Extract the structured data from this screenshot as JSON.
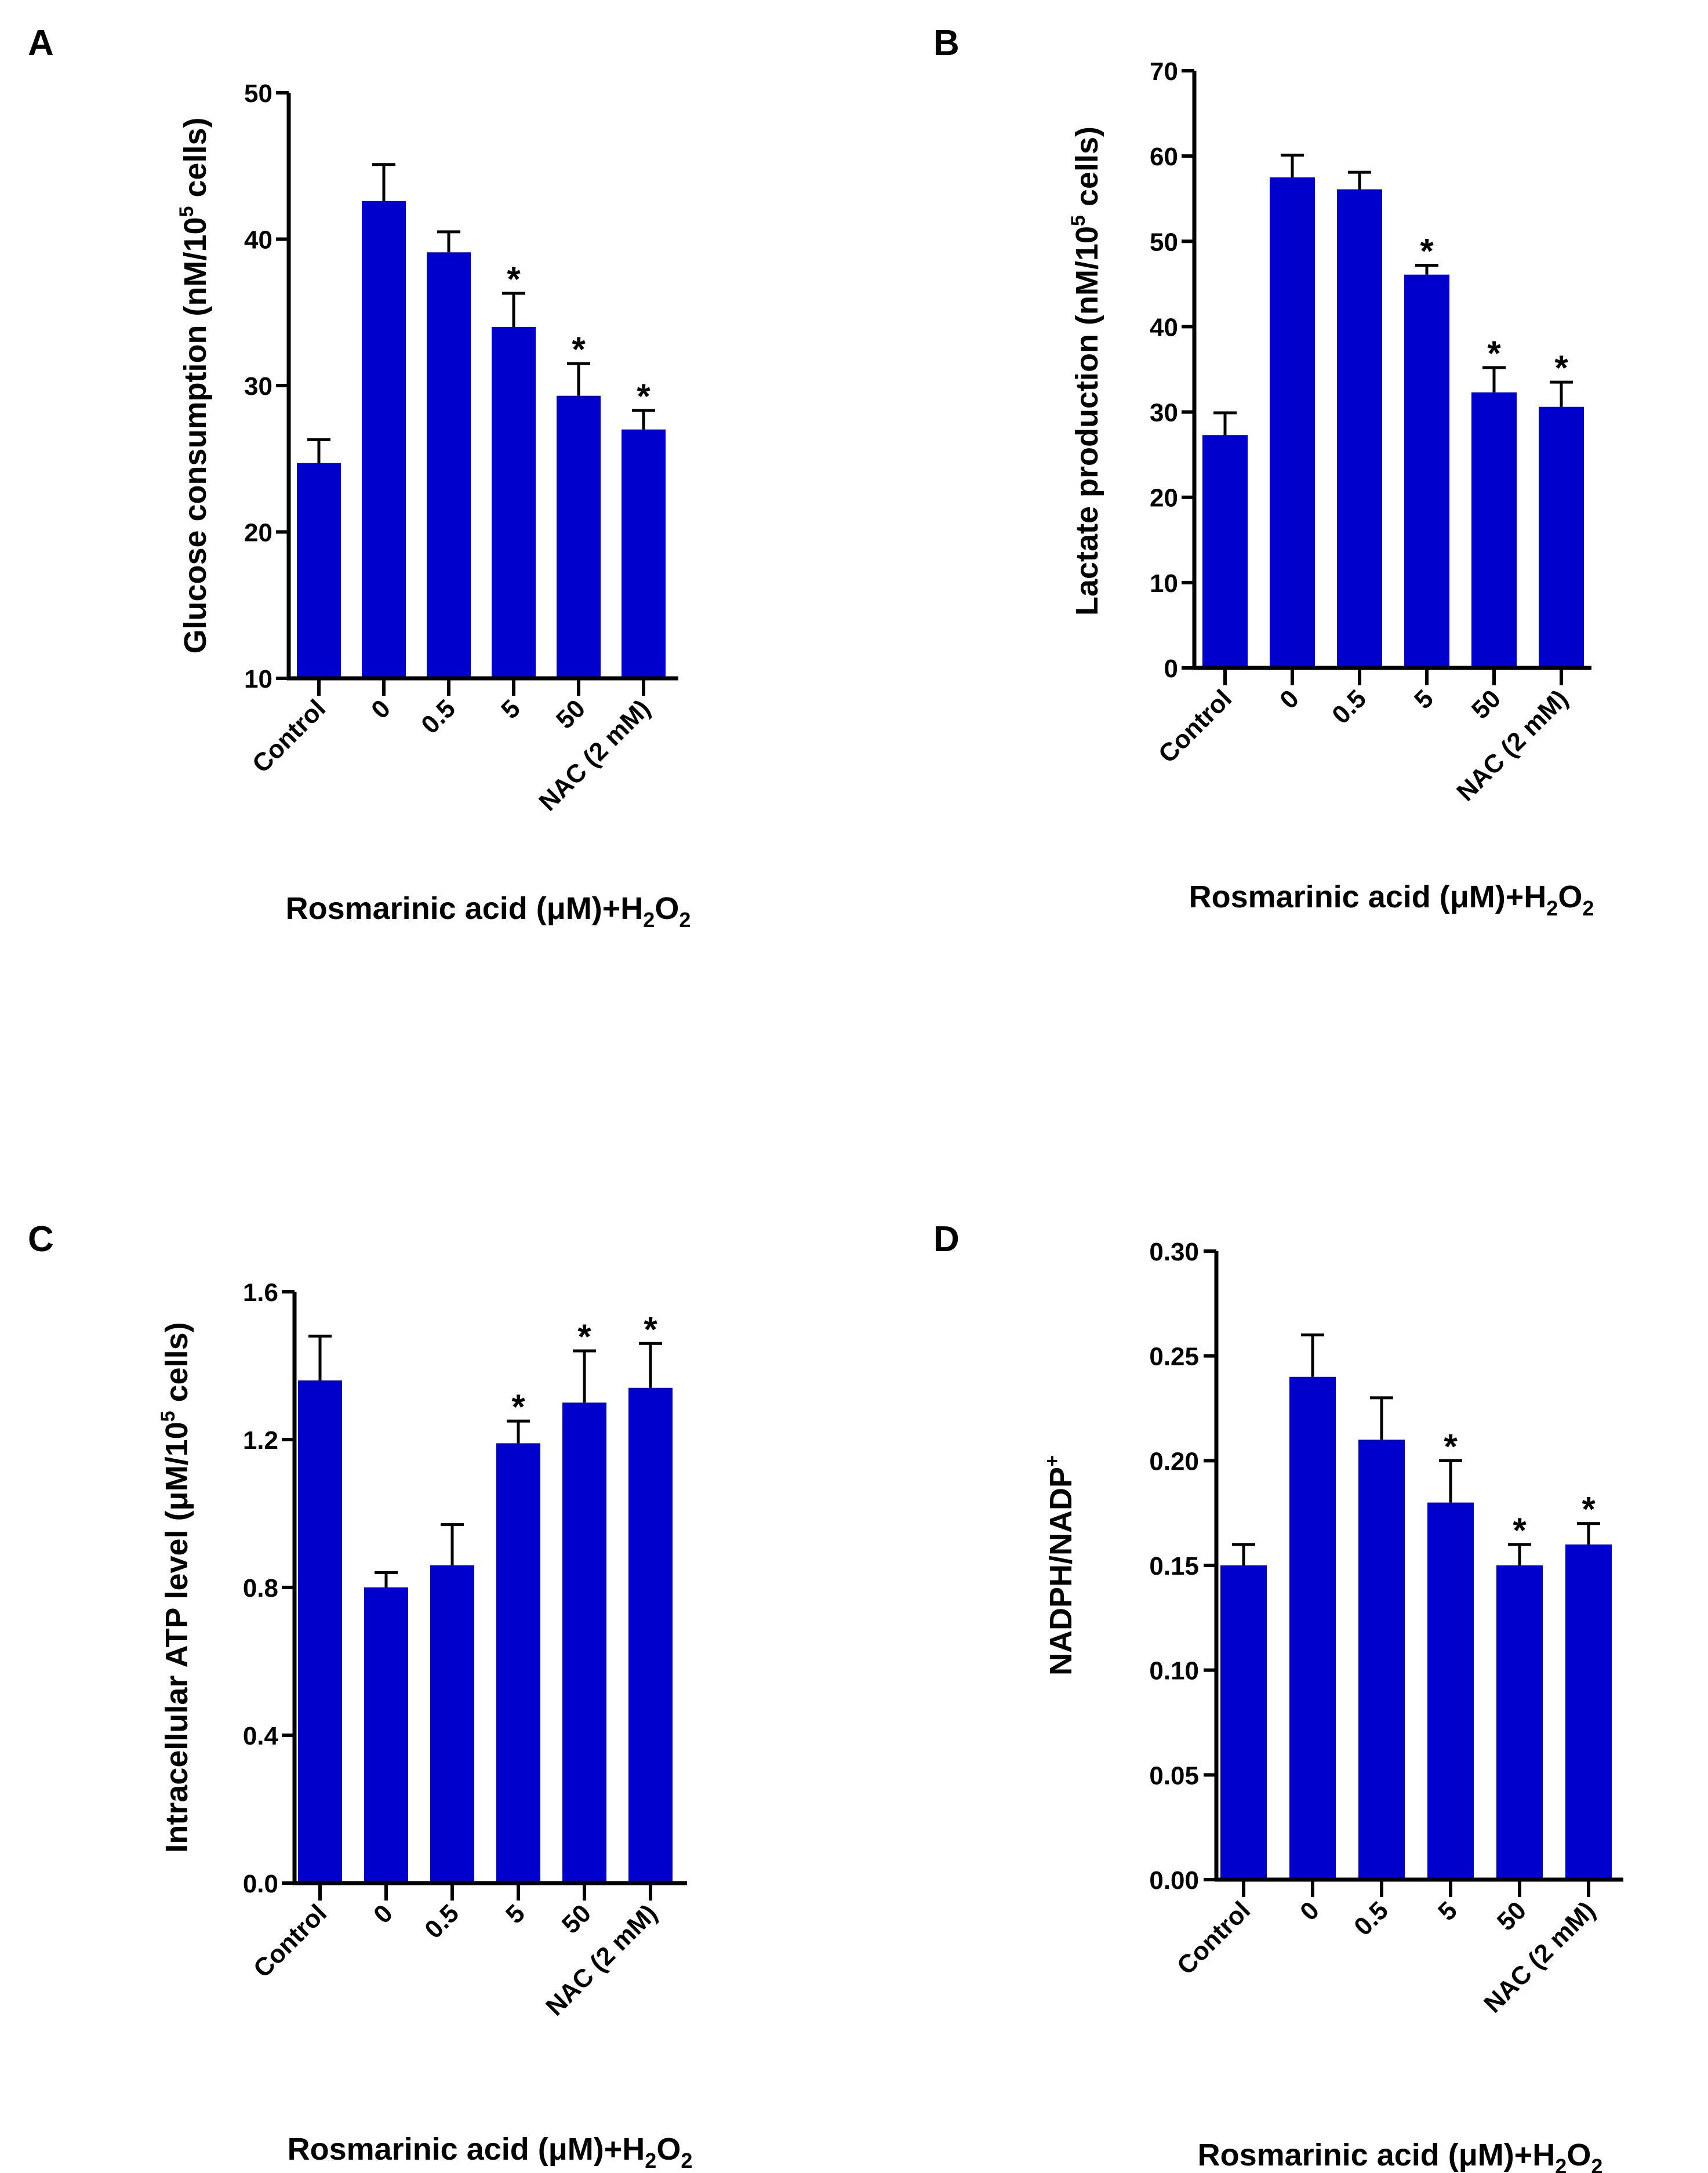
{
  "figure": {
    "bar_color": "#0000CD",
    "axis_color": "#000000"
  },
  "chart_data": [
    {
      "type": "bar",
      "panel_label": "A",
      "categories": [
        "Control",
        "0",
        "0.5",
        "5",
        "50",
        "NAC (2 mM)"
      ],
      "values": [
        24.7,
        42.6,
        39.1,
        34.0,
        29.3,
        27.0
      ],
      "errors": [
        1.6,
        2.5,
        1.4,
        2.3,
        2.2,
        1.3
      ],
      "significance": [
        "",
        "",
        "",
        "*",
        "*",
        "*"
      ],
      "ylabel_main": "Glucose consumption (nM/10",
      "ylabel_sup": "5",
      "ylabel_tail": " cells)",
      "xlabel_main": "Rosmarinic acid (μM)+H",
      "xlabel_sub1": "2",
      "xlabel_mid": "O",
      "xlabel_sub2": "2",
      "ylim": [
        10,
        50
      ],
      "yticks": [
        10,
        20,
        30,
        40,
        50
      ],
      "ytick_labels": [
        "10",
        "20",
        "30",
        "40",
        "50"
      ]
    },
    {
      "type": "bar",
      "panel_label": "B",
      "categories": [
        "Control",
        "0",
        "0.5",
        "5",
        "50",
        "NAC (2 mM)"
      ],
      "values": [
        27.3,
        57.5,
        56.1,
        46.1,
        32.3,
        30.6
      ],
      "errors": [
        2.6,
        2.6,
        2.0,
        1.1,
        2.9,
        2.9
      ],
      "significance": [
        "",
        "",
        "",
        "*",
        "*",
        "*"
      ],
      "ylabel_main": "Lactate production (nM/10",
      "ylabel_sup": "5",
      "ylabel_tail": " cells)",
      "xlabel_main": "Rosmarinic acid (μM)+H",
      "xlabel_sub1": "2",
      "xlabel_mid": "O",
      "xlabel_sub2": "2",
      "ylim": [
        0,
        70
      ],
      "yticks": [
        0,
        10,
        20,
        30,
        40,
        50,
        60,
        70
      ],
      "ytick_labels": [
        "0",
        "10",
        "20",
        "30",
        "40",
        "50",
        "60",
        "70"
      ]
    },
    {
      "type": "bar",
      "panel_label": "C",
      "categories": [
        "Control",
        "0",
        "0.5",
        "5",
        "50",
        "NAC (2 mM)"
      ],
      "values": [
        1.36,
        0.8,
        0.86,
        1.19,
        1.3,
        1.34
      ],
      "errors": [
        0.12,
        0.04,
        0.11,
        0.06,
        0.14,
        0.12
      ],
      "significance": [
        "",
        "",
        "",
        "*",
        "*",
        "*"
      ],
      "ylabel_main": "Intracellular ATP level (μM/10",
      "ylabel_sup": "5",
      "ylabel_tail": " cells)",
      "xlabel_main": "Rosmarinic acid (μM)+H",
      "xlabel_sub1": "2",
      "xlabel_mid": "O",
      "xlabel_sub2": "2",
      "ylim": [
        0,
        1.6
      ],
      "yticks": [
        0,
        0.4,
        0.8,
        1.2,
        1.6
      ],
      "ytick_labels": [
        "0.0",
        "0.4",
        "0.8",
        "1.2",
        "1.6"
      ]
    },
    {
      "type": "bar",
      "panel_label": "D",
      "categories": [
        "Control",
        "0",
        "0.5",
        "5",
        "50",
        "NAC (2 mM)"
      ],
      "values": [
        0.15,
        0.24,
        0.21,
        0.18,
        0.15,
        0.16
      ],
      "errors": [
        0.01,
        0.02,
        0.02,
        0.02,
        0.01,
        0.01
      ],
      "significance": [
        "",
        "",
        "",
        "*",
        "*",
        "*"
      ],
      "ylabel_main": "NADPH/NADP",
      "ylabel_sup": "+",
      "ylabel_tail": "",
      "xlabel_main": "Rosmarinic acid (μM)+H",
      "xlabel_sub1": "2",
      "xlabel_mid": "O",
      "xlabel_sub2": "2",
      "ylim": [
        0,
        0.3
      ],
      "yticks": [
        0,
        0.05,
        0.1,
        0.15,
        0.2,
        0.25,
        0.3
      ],
      "ytick_labels": [
        "0.00",
        "0.05",
        "0.10",
        "0.15",
        "0.20",
        "0.25",
        "0.30"
      ]
    }
  ]
}
